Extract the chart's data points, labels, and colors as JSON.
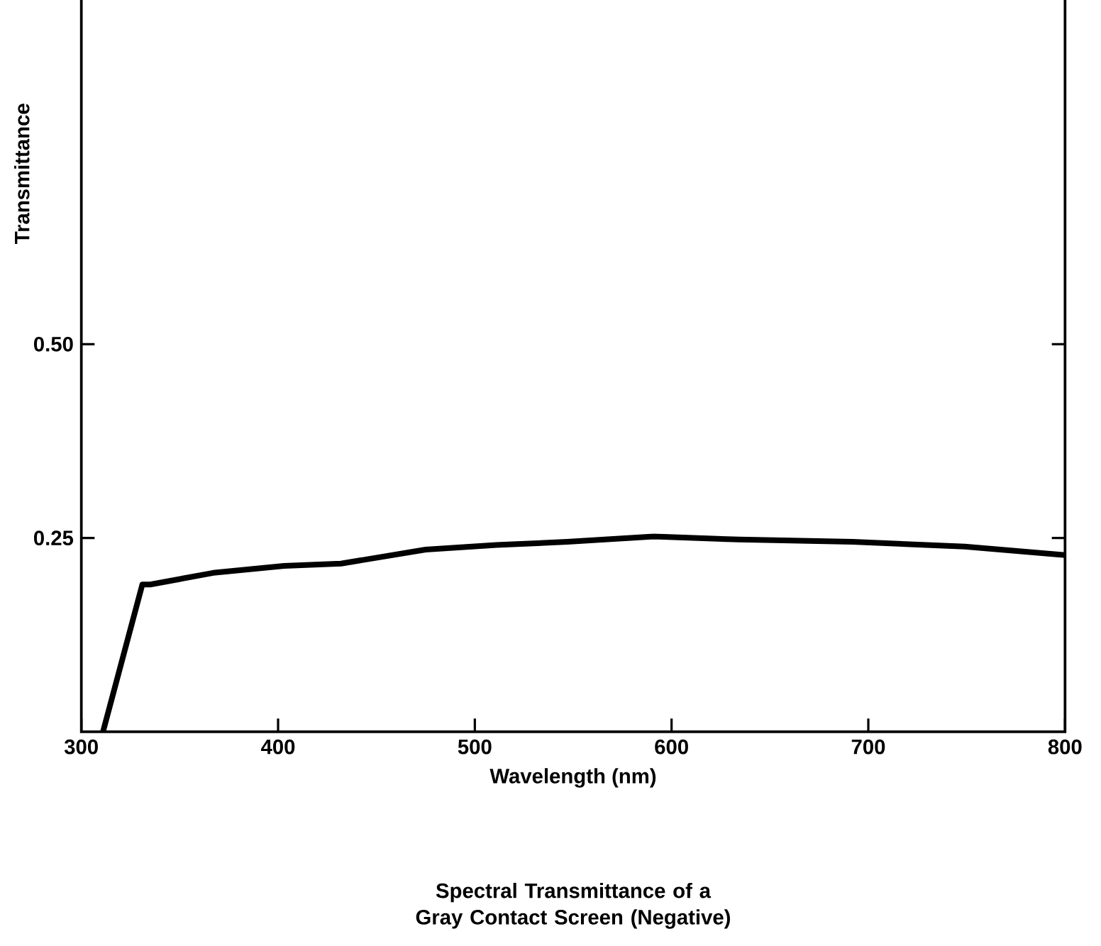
{
  "chart_data": {
    "type": "line",
    "title": "Spectral Transmittance of a Gray Contact Screen (Negative)",
    "xlabel": "Wavelength  (nm)",
    "ylabel": "Transmittance",
    "xlim": [
      300,
      800
    ],
    "ylim": [
      0,
      1
    ],
    "xticks": [
      300,
      400,
      500,
      600,
      700,
      800
    ],
    "yticks": [
      {
        "value": 0.25,
        "label": "0.25"
      },
      {
        "value": 0.5,
        "label": "0.50"
      }
    ],
    "grid": false,
    "marker": "none",
    "line_style": "solid",
    "color": "#000000",
    "x": [
      311,
      331,
      335,
      367,
      403,
      432,
      475,
      511,
      547,
      591,
      634,
      692,
      749,
      800
    ],
    "values": [
      0.0,
      0.19,
      0.19,
      0.205,
      0.214,
      0.217,
      0.235,
      0.241,
      0.245,
      0.252,
      0.248,
      0.245,
      0.239,
      0.228
    ]
  }
}
